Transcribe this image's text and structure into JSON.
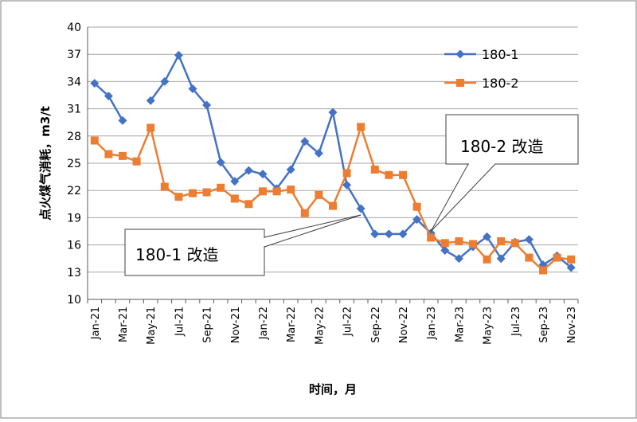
{
  "chart_data": {
    "type": "line",
    "title": "",
    "xlabel": "时间，月",
    "ylabel": "点火煤气消耗，m3/t",
    "ylim": [
      10,
      40
    ],
    "yticks": [
      10,
      13,
      16,
      19,
      22,
      25,
      28,
      31,
      34,
      37,
      40
    ],
    "grid": true,
    "legend_position": "top-right",
    "categories": [
      "Jan-21",
      "Feb-21",
      "Mar-21",
      "Apr-21",
      "May-21",
      "Jun-21",
      "Jul-21",
      "Aug-21",
      "Sep-21",
      "Oct-21",
      "Nov-21",
      "Dec-21",
      "Jan-22",
      "Feb-22",
      "Mar-22",
      "Apr-22",
      "May-22",
      "Jun-22",
      "Jul-22",
      "Aug-22",
      "Sep-22",
      "Oct-22",
      "Nov-22",
      "Dec-22",
      "Jan-23",
      "Feb-23",
      "Mar-23",
      "Apr-23",
      "May-23",
      "Jun-23",
      "Jul-23",
      "Aug-23",
      "Sep-23",
      "Oct-23",
      "Nov-23"
    ],
    "tick_labels": [
      "Jan-21",
      "Mar-21",
      "May-21",
      "Jul-21",
      "Sep-21",
      "Nov-21",
      "Jan-22",
      "Mar-22",
      "May-22",
      "Jul-22",
      "Sep-22",
      "Nov-22",
      "Jan-23",
      "Mar-23",
      "May-23",
      "Jul-23",
      "Sep-23",
      "Nov-23"
    ],
    "series": [
      {
        "name": "180-1",
        "color": "#4472C4",
        "marker": "diamond",
        "values": [
          33.8,
          32.4,
          29.7,
          null,
          31.9,
          34.0,
          36.9,
          33.2,
          31.4,
          25.1,
          23.0,
          24.2,
          23.8,
          22.2,
          24.3,
          27.4,
          26.1,
          30.6,
          22.6,
          20.0,
          17.2,
          17.2,
          17.2,
          18.8,
          17.3,
          15.4,
          14.5,
          15.8,
          16.9,
          14.5,
          16.3,
          16.6,
          13.8,
          14.8,
          13.5
        ]
      },
      {
        "name": "180-2",
        "color": "#ED7D31",
        "marker": "square",
        "values": [
          27.5,
          26.0,
          25.8,
          25.2,
          28.9,
          22.4,
          21.3,
          21.7,
          21.8,
          22.3,
          21.1,
          20.5,
          21.9,
          21.9,
          22.1,
          19.5,
          21.5,
          20.3,
          23.9,
          29.0,
          24.3,
          23.7,
          23.7,
          20.2,
          16.8,
          16.2,
          16.4,
          16.1,
          14.4,
          16.4,
          16.2,
          14.6,
          13.2,
          14.6,
          14.4
        ]
      }
    ],
    "annotations": [
      {
        "text": "180-1 改造",
        "target_category": "Aug-22",
        "target_value": 19.3
      },
      {
        "text": "180-2 改造",
        "target_category": "Jan-23",
        "target_value": 17.5
      }
    ],
    "colors": {
      "grid": "#A6A6A6",
      "axis": "#595959",
      "border": "#7F7F7F"
    }
  }
}
